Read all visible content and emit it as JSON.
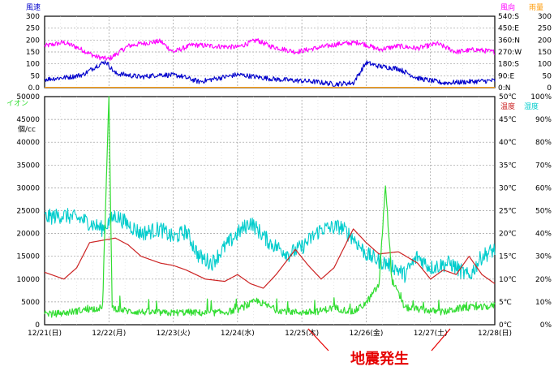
{
  "chart_data": [
    {
      "name": "wind",
      "type": "line",
      "left_title": "風速",
      "left_ticks": [
        "300",
        "250",
        "200",
        "150",
        "100",
        "50",
        "0.0"
      ],
      "right_title_a": "風向",
      "right_title_b": "雨量",
      "right_ticks_a": [
        "540:S",
        "450:E",
        "360:N",
        "270:W",
        "180:S",
        "90:E",
        "0:N"
      ],
      "right_ticks_b": [
        "300",
        "250",
        "200",
        "150",
        "100",
        "50",
        "0"
      ],
      "ylim": [
        0,
        300
      ],
      "x_range": [
        0,
        7
      ],
      "series": [
        {
          "name": "風向",
          "color": "#ff00ff",
          "kind": "noisy",
          "values": [
            [
              0,
              175
            ],
            [
              0.3,
              190
            ],
            [
              0.5,
              170
            ],
            [
              0.8,
              130
            ],
            [
              1.0,
              120
            ],
            [
              1.3,
              175
            ],
            [
              1.5,
              185
            ],
            [
              1.8,
              195
            ],
            [
              2.0,
              150
            ],
            [
              2.3,
              180
            ],
            [
              2.6,
              175
            ],
            [
              3.0,
              170
            ],
            [
              3.3,
              200
            ],
            [
              3.5,
              175
            ],
            [
              3.9,
              150
            ],
            [
              4.3,
              170
            ],
            [
              4.6,
              185
            ],
            [
              4.9,
              190
            ],
            [
              5.2,
              160
            ],
            [
              5.5,
              175
            ],
            [
              5.8,
              165
            ],
            [
              6.1,
              185
            ],
            [
              6.4,
              150
            ],
            [
              6.7,
              160
            ],
            [
              7.0,
              150
            ]
          ]
        },
        {
          "name": "風速",
          "color": "#0000cc",
          "kind": "noisy",
          "values": [
            [
              0,
              35
            ],
            [
              0.4,
              45
            ],
            [
              0.6,
              55
            ],
            [
              0.8,
              90
            ],
            [
              0.95,
              110
            ],
            [
              1.1,
              60
            ],
            [
              1.5,
              45
            ],
            [
              1.8,
              55
            ],
            [
              2.1,
              50
            ],
            [
              2.4,
              25
            ],
            [
              2.7,
              40
            ],
            [
              3.0,
              55
            ],
            [
              3.3,
              45
            ],
            [
              3.6,
              35
            ],
            [
              3.9,
              30
            ],
            [
              4.2,
              25
            ],
            [
              4.5,
              15
            ],
            [
              4.8,
              20
            ],
            [
              5.0,
              105
            ],
            [
              5.2,
              90
            ],
            [
              5.5,
              80
            ],
            [
              5.8,
              40
            ],
            [
              6.2,
              20
            ],
            [
              6.6,
              25
            ],
            [
              7.0,
              30
            ]
          ]
        },
        {
          "name": "雨量",
          "color": "#ff9900",
          "kind": "flat",
          "values": [
            [
              0,
              1
            ],
            [
              7,
              1
            ]
          ]
        }
      ]
    },
    {
      "name": "main",
      "type": "line",
      "left_title": "イオン",
      "left_unit": "個/cc",
      "right_title_temp": "温度",
      "right_title_hum": "湿度",
      "left_ticks": [
        "50000",
        "45000",
        "40000",
        "35000",
        "30000",
        "25000",
        "20000",
        "15000",
        "10000",
        "5000",
        "0"
      ],
      "right_ticks_temp": [
        "50℃",
        "45℃",
        "40℃",
        "35℃",
        "30℃",
        "25℃",
        "20℃",
        "15℃",
        "10℃",
        "5℃",
        "0℃"
      ],
      "right_ticks_hum": [
        "100%",
        "90%",
        "80%",
        "70%",
        "60%",
        "50%",
        "40%",
        "30%",
        "20%",
        "10%",
        "0%"
      ],
      "ylim": [
        0,
        50000
      ],
      "x_range": [
        0,
        7
      ],
      "x_ticks": [
        "12/21(日)",
        "12/22(月)",
        "12/23(火)",
        "12/24(水)",
        "12/25(木)",
        "12/26(金)",
        "12/27(土)",
        "12/28(日)"
      ],
      "series": [
        {
          "name": "湿度",
          "color": "#00cccc",
          "kind": "noisy",
          "values": [
            [
              0,
              23500
            ],
            [
              0.3,
              24000
            ],
            [
              0.6,
              23000
            ],
            [
              0.9,
              21000
            ],
            [
              1.1,
              24000
            ],
            [
              1.3,
              22000
            ],
            [
              1.5,
              20000
            ],
            [
              1.8,
              21000
            ],
            [
              2.0,
              19000
            ],
            [
              2.2,
              20500
            ],
            [
              2.4,
              15000
            ],
            [
              2.6,
              13500
            ],
            [
              2.8,
              17000
            ],
            [
              3.0,
              20000
            ],
            [
              3.2,
              22500
            ],
            [
              3.5,
              18000
            ],
            [
              3.8,
              15500
            ],
            [
              4.0,
              17000
            ],
            [
              4.3,
              21000
            ],
            [
              4.6,
              21500
            ],
            [
              4.8,
              19000
            ],
            [
              5.0,
              15500
            ],
            [
              5.2,
              14000
            ],
            [
              5.4,
              13000
            ],
            [
              5.6,
              11000
            ],
            [
              5.8,
              15000
            ],
            [
              6.0,
              12500
            ],
            [
              6.3,
              13500
            ],
            [
              6.6,
              10500
            ],
            [
              6.8,
              15000
            ],
            [
              7.0,
              16500
            ]
          ]
        },
        {
          "name": "温度",
          "color": "#cc2222",
          "kind": "smooth",
          "values": [
            [
              0,
              11500
            ],
            [
              0.3,
              10000
            ],
            [
              0.5,
              12500
            ],
            [
              0.7,
              18000
            ],
            [
              0.9,
              18500
            ],
            [
              1.1,
              19000
            ],
            [
              1.3,
              17500
            ],
            [
              1.5,
              15000
            ],
            [
              1.8,
              13500
            ],
            [
              2.0,
              13000
            ],
            [
              2.2,
              12000
            ],
            [
              2.5,
              10000
            ],
            [
              2.8,
              9500
            ],
            [
              3.0,
              11000
            ],
            [
              3.2,
              9000
            ],
            [
              3.4,
              8000
            ],
            [
              3.6,
              11000
            ],
            [
              3.9,
              16500
            ],
            [
              4.1,
              13000
            ],
            [
              4.3,
              10000
            ],
            [
              4.5,
              12500
            ],
            [
              4.8,
              21000
            ],
            [
              5.0,
              18000
            ],
            [
              5.2,
              15500
            ],
            [
              5.5,
              16000
            ],
            [
              5.8,
              13500
            ],
            [
              6.0,
              10000
            ],
            [
              6.2,
              12000
            ],
            [
              6.4,
              11000
            ],
            [
              6.6,
              15000
            ],
            [
              6.8,
              11000
            ],
            [
              7.0,
              9000
            ]
          ]
        },
        {
          "name": "イオン",
          "color": "#33dd33",
          "kind": "spiky",
          "values": [
            [
              0,
              1500
            ],
            [
              0.3,
              1800
            ],
            [
              0.6,
              2500
            ],
            [
              0.9,
              3000
            ],
            [
              1.0,
              49000
            ],
            [
              1.05,
              3000
            ],
            [
              1.3,
              2200
            ],
            [
              1.6,
              2000
            ],
            [
              1.9,
              1800
            ],
            [
              2.2,
              2000
            ],
            [
              2.5,
              1800
            ],
            [
              2.8,
              2000
            ],
            [
              3.0,
              2500
            ],
            [
              3.3,
              4500
            ],
            [
              3.6,
              2500
            ],
            [
              3.9,
              2000
            ],
            [
              4.2,
              2000
            ],
            [
              4.5,
              3000
            ],
            [
              4.8,
              2000
            ],
            [
              5.0,
              4000
            ],
            [
              5.2,
              8000
            ],
            [
              5.3,
              30000
            ],
            [
              5.4,
              9000
            ],
            [
              5.6,
              3000
            ],
            [
              5.9,
              2500
            ],
            [
              6.2,
              2000
            ],
            [
              6.5,
              3000
            ],
            [
              6.8,
              3000
            ],
            [
              7.0,
              3500
            ]
          ]
        }
      ]
    }
  ],
  "annotation": {
    "text": "地震発生"
  }
}
